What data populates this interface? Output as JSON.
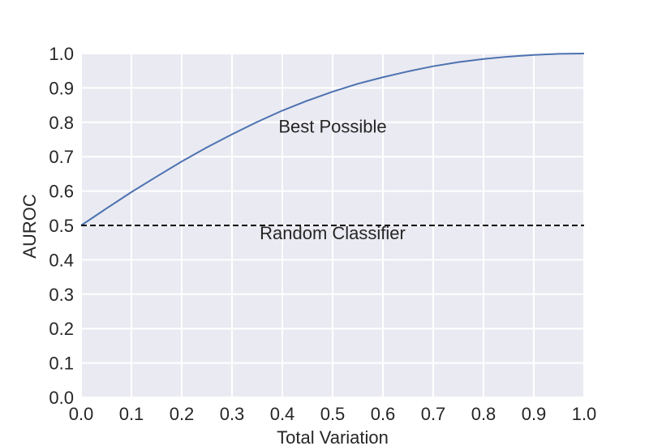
{
  "chart_data": {
    "type": "line",
    "xlabel": "Total Variation",
    "ylabel": "AUROC",
    "xlim": [
      0.0,
      1.0
    ],
    "ylim": [
      0.0,
      1.0
    ],
    "xticks": [
      "0.0",
      "0.1",
      "0.2",
      "0.3",
      "0.4",
      "0.5",
      "0.6",
      "0.7",
      "0.8",
      "0.9",
      "1.0"
    ],
    "yticks": [
      "0.0",
      "0.1",
      "0.2",
      "0.3",
      "0.4",
      "0.5",
      "0.6",
      "0.7",
      "0.8",
      "0.9",
      "1.0"
    ],
    "grid": true,
    "background_color": "#eaeaf2",
    "series": [
      {
        "style": "solid",
        "color": "#4c72b0",
        "x": [
          0.0,
          0.05,
          0.1,
          0.15,
          0.2,
          0.25,
          0.3,
          0.35,
          0.4,
          0.45,
          0.5,
          0.55,
          0.6,
          0.65,
          0.7,
          0.75,
          0.8,
          0.85,
          0.9,
          0.95,
          1.0
        ],
        "y": [
          0.5,
          0.549,
          0.597,
          0.642,
          0.686,
          0.727,
          0.765,
          0.801,
          0.834,
          0.863,
          0.889,
          0.912,
          0.931,
          0.948,
          0.963,
          0.975,
          0.984,
          0.991,
          0.996,
          0.999,
          1.0
        ]
      },
      {
        "style": "dashed",
        "color": "#000000",
        "x": [
          0.0,
          1.0
        ],
        "y": [
          0.5,
          0.5
        ]
      }
    ],
    "annotations": [
      {
        "text": "Best Possible",
        "x": 0.5,
        "y": 0.77
      },
      {
        "text": "Random Classifier",
        "x": 0.5,
        "y": 0.46
      }
    ]
  }
}
